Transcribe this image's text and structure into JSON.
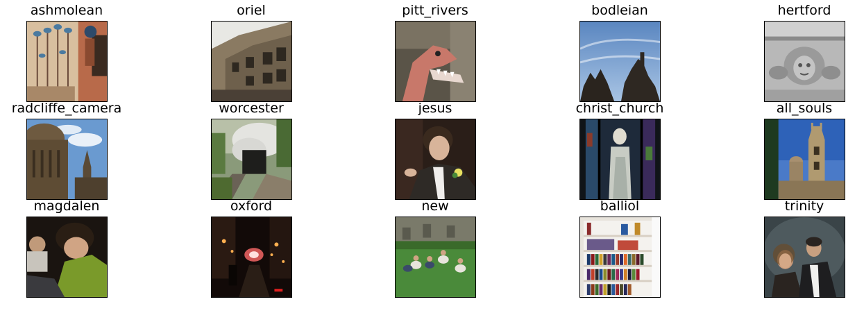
{
  "grid": {
    "rows": [
      [
        {
          "title": "ashmolean",
          "scene": "egyptian-relief-painting"
        },
        {
          "title": "oriel",
          "scene": "college-building-facade"
        },
        {
          "title": "pitt_rivers",
          "scene": "dinosaur-head-model"
        },
        {
          "title": "bodleian",
          "scene": "spires-against-sky"
        },
        {
          "title": "hertford",
          "scene": "stone-carving-grayscale"
        }
      ],
      [
        {
          "title": "radcliffe_camera",
          "scene": "radcliffe-camera-dome"
        },
        {
          "title": "worcester",
          "scene": "steam-train"
        },
        {
          "title": "jesus",
          "scene": "man-in-suit-portrait"
        },
        {
          "title": "christ_church",
          "scene": "stained-glass-window"
        },
        {
          "title": "all_souls",
          "scene": "tower-against-blue-sky"
        }
      ],
      [
        {
          "title": "magdalen",
          "scene": "people-indoors-dark"
        },
        {
          "title": "oxford",
          "scene": "night-street-lights"
        },
        {
          "title": "new",
          "scene": "people-on-lawn"
        },
        {
          "title": "balliol",
          "scene": "bookshelf"
        },
        {
          "title": "trinity",
          "scene": "couple-dark-portrait"
        }
      ]
    ]
  }
}
